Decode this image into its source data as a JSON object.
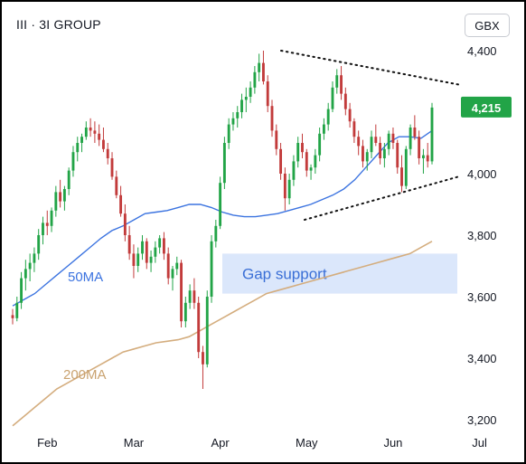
{
  "header": {
    "title": "III · 3I GROUP",
    "currency": "GBX"
  },
  "chart_data": {
    "type": "candlestick",
    "title": "III · 3I GROUP",
    "currency": "GBX",
    "ylim": [
      3180,
      4440
    ],
    "y_ticks": [
      "4,400",
      "4,000",
      "3,800",
      "3,600",
      "3,400",
      "3,200"
    ],
    "y_tick_values": [
      4400,
      4000,
      3800,
      3600,
      3400,
      3200
    ],
    "x_ticks": [
      "Feb",
      "Mar",
      "Apr",
      "May",
      "Jun",
      "Jul"
    ],
    "x_tick_index": [
      8,
      28,
      48,
      68,
      88,
      108
    ],
    "grid": false,
    "last_price": {
      "label": "4,215",
      "value": 4215,
      "color": "#22a447"
    },
    "colors": {
      "up": "#22a447",
      "down": "#c23b3b",
      "ma50": "#3b73e0",
      "ma200": "#d4ad7e",
      "annotation": "#dbe7fb",
      "annotation_text": "#3a6fd6"
    },
    "ohlc": [
      [
        3540,
        3560,
        3510,
        3530
      ],
      [
        3530,
        3600,
        3520,
        3580
      ],
      [
        3580,
        3680,
        3560,
        3660
      ],
      [
        3660,
        3720,
        3620,
        3690
      ],
      [
        3690,
        3740,
        3650,
        3710
      ],
      [
        3710,
        3760,
        3680,
        3740
      ],
      [
        3740,
        3820,
        3720,
        3800
      ],
      [
        3800,
        3860,
        3770,
        3840
      ],
      [
        3840,
        3880,
        3800,
        3830
      ],
      [
        3830,
        3890,
        3810,
        3880
      ],
      [
        3880,
        3960,
        3860,
        3940
      ],
      [
        3940,
        3980,
        3890,
        3910
      ],
      [
        3910,
        3960,
        3880,
        3950
      ],
      [
        3950,
        4020,
        3930,
        4010
      ],
      [
        4010,
        4090,
        3990,
        4070
      ],
      [
        4070,
        4120,
        4040,
        4100
      ],
      [
        4100,
        4130,
        4070,
        4120
      ],
      [
        4120,
        4170,
        4110,
        4150
      ],
      [
        4150,
        4180,
        4120,
        4140
      ],
      [
        4140,
        4170,
        4100,
        4130
      ],
      [
        4130,
        4160,
        4090,
        4110
      ],
      [
        4110,
        4150,
        4070,
        4080
      ],
      [
        4080,
        4100,
        4030,
        4050
      ],
      [
        4050,
        4070,
        3980,
        3990
      ],
      [
        3990,
        4010,
        3920,
        3930
      ],
      [
        3930,
        3960,
        3860,
        3870
      ],
      [
        3870,
        3900,
        3780,
        3800
      ],
      [
        3800,
        3830,
        3720,
        3740
      ],
      [
        3740,
        3770,
        3660,
        3700
      ],
      [
        3700,
        3760,
        3680,
        3740
      ],
      [
        3740,
        3800,
        3720,
        3780
      ],
      [
        3780,
        3790,
        3690,
        3710
      ],
      [
        3710,
        3750,
        3680,
        3730
      ],
      [
        3730,
        3780,
        3710,
        3760
      ],
      [
        3760,
        3800,
        3740,
        3790
      ],
      [
        3790,
        3810,
        3720,
        3740
      ],
      [
        3740,
        3760,
        3640,
        3660
      ],
      [
        3660,
        3700,
        3620,
        3690
      ],
      [
        3690,
        3730,
        3670,
        3710
      ],
      [
        3710,
        3720,
        3500,
        3520
      ],
      [
        3520,
        3600,
        3500,
        3580
      ],
      [
        3580,
        3640,
        3560,
        3620
      ],
      [
        3620,
        3660,
        3560,
        3580
      ],
      [
        3580,
        3600,
        3400,
        3420
      ],
      [
        3420,
        3440,
        3300,
        3380
      ],
      [
        3380,
        3620,
        3370,
        3600
      ],
      [
        3600,
        3800,
        3580,
        3780
      ],
      [
        3780,
        3850,
        3760,
        3830
      ],
      [
        3830,
        3990,
        3820,
        3970
      ],
      [
        3970,
        4120,
        3950,
        4100
      ],
      [
        4100,
        4180,
        4080,
        4160
      ],
      [
        4160,
        4200,
        4140,
        4180
      ],
      [
        4180,
        4220,
        4150,
        4200
      ],
      [
        4200,
        4260,
        4180,
        4240
      ],
      [
        4240,
        4280,
        4200,
        4250
      ],
      [
        4250,
        4300,
        4230,
        4280
      ],
      [
        4280,
        4350,
        4260,
        4330
      ],
      [
        4330,
        4390,
        4300,
        4360
      ],
      [
        4360,
        4400,
        4290,
        4300
      ],
      [
        4300,
        4320,
        4200,
        4220
      ],
      [
        4220,
        4240,
        4120,
        4140
      ],
      [
        4140,
        4160,
        4060,
        4080
      ],
      [
        4080,
        4100,
        3980,
        4000
      ],
      [
        4000,
        4020,
        3880,
        3920
      ],
      [
        3920,
        4000,
        3900,
        3980
      ],
      [
        3980,
        4060,
        3960,
        4040
      ],
      [
        4040,
        4120,
        4020,
        4100
      ],
      [
        4100,
        4130,
        4050,
        4070
      ],
      [
        4070,
        4080,
        3990,
        4010
      ],
      [
        4010,
        4030,
        3980,
        4020
      ],
      [
        4020,
        4080,
        4000,
        4060
      ],
      [
        4060,
        4150,
        4040,
        4130
      ],
      [
        4130,
        4180,
        4110,
        4160
      ],
      [
        4160,
        4230,
        4140,
        4210
      ],
      [
        4210,
        4300,
        4200,
        4280
      ],
      [
        4280,
        4340,
        4260,
        4320
      ],
      [
        4320,
        4350,
        4240,
        4260
      ],
      [
        4260,
        4280,
        4190,
        4210
      ],
      [
        4210,
        4230,
        4150,
        4170
      ],
      [
        4170,
        4180,
        4100,
        4120
      ],
      [
        4120,
        4140,
        4060,
        4090
      ],
      [
        4090,
        4110,
        4020,
        4040
      ],
      [
        4040,
        4080,
        4010,
        4070
      ],
      [
        4070,
        4140,
        4050,
        4120
      ],
      [
        4120,
        4160,
        4090,
        4100
      ],
      [
        4100,
        4120,
        4030,
        4050
      ],
      [
        4050,
        4100,
        4020,
        4080
      ],
      [
        4080,
        4140,
        4060,
        4130
      ],
      [
        4130,
        4150,
        4080,
        4100
      ],
      [
        4100,
        4110,
        4000,
        4020
      ],
      [
        4020,
        4060,
        3940,
        3960
      ],
      [
        3960,
        4090,
        3950,
        4080
      ],
      [
        4080,
        4160,
        4060,
        4150
      ],
      [
        4150,
        4190,
        4110,
        4120
      ],
      [
        4120,
        4140,
        4030,
        4050
      ],
      [
        4050,
        4080,
        4000,
        4060
      ],
      [
        4060,
        4100,
        4020,
        4040
      ],
      [
        4040,
        4230,
        4030,
        4215
      ]
    ],
    "ma50": [
      3570,
      3590,
      3610,
      3640,
      3670,
      3700,
      3730,
      3760,
      3790,
      3815,
      3830,
      3850,
      3870,
      3875,
      3880,
      3890,
      3900,
      3900,
      3890,
      3875,
      3865,
      3860,
      3860,
      3865,
      3870,
      3880,
      3890,
      3900,
      3915,
      3930,
      3950,
      3980,
      4020,
      4060,
      4100,
      4120,
      4120,
      4115,
      4140
    ],
    "ma200": [
      3180,
      3210,
      3240,
      3270,
      3300,
      3320,
      3340,
      3360,
      3380,
      3400,
      3420,
      3430,
      3440,
      3450,
      3455,
      3460,
      3470,
      3490,
      3510,
      3530,
      3550,
      3570,
      3590,
      3610,
      3620,
      3630,
      3640,
      3650,
      3660,
      3670,
      3680,
      3690,
      3700,
      3710,
      3720,
      3730,
      3740,
      3760,
      3780
    ],
    "series": [
      {
        "name": "50MA"
      },
      {
        "name": "200MA"
      }
    ],
    "annotations": [
      {
        "text": "Gap support",
        "y_range": [
          3610,
          3740
        ]
      }
    ],
    "triangle": {
      "upper": [
        [
          4400,
          4290
        ]
      ],
      "lower": [
        [
          3850,
          3990
        ]
      ]
    }
  }
}
